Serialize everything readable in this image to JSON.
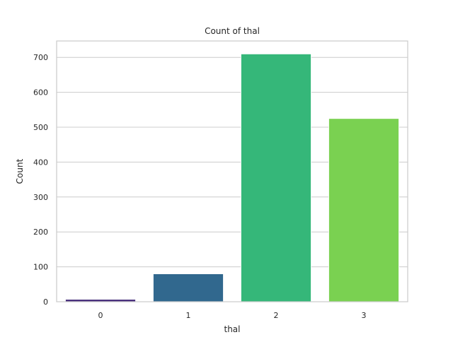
{
  "chart_data": {
    "type": "bar",
    "title": "Count of thal",
    "xlabel": "thal",
    "ylabel": "Count",
    "categories": [
      "0",
      "1",
      "2",
      "3"
    ],
    "values": [
      7,
      80,
      710,
      525
    ],
    "colors": [
      "#472d7b",
      "#31688e",
      "#35b779",
      "#7ad151"
    ],
    "ylim": [
      0,
      747
    ],
    "yticks": [
      0,
      100,
      200,
      300,
      400,
      500,
      600,
      700
    ],
    "grid": "y",
    "legend": "none"
  }
}
